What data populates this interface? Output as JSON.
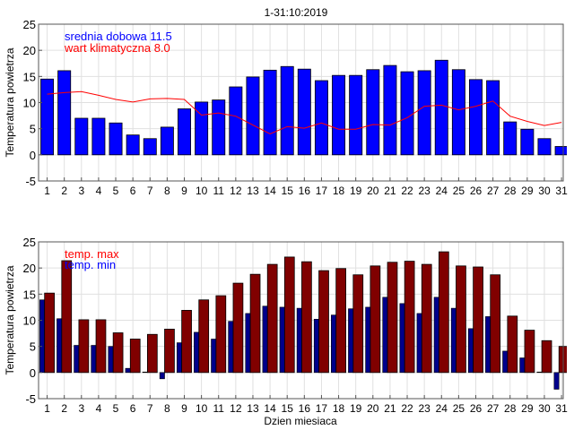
{
  "title": "1-31:10:2019",
  "chart_data": [
    {
      "type": "bar",
      "title": "1-31:10:2019",
      "ylabel": "Temperatura powietrza",
      "xlabel": "",
      "ylim": [
        -5,
        25
      ],
      "yticks": [
        -5,
        0,
        5,
        10,
        15,
        20,
        25
      ],
      "x": [
        1,
        2,
        3,
        4,
        5,
        6,
        7,
        8,
        9,
        10,
        11,
        12,
        13,
        14,
        15,
        16,
        17,
        18,
        19,
        20,
        21,
        22,
        23,
        24,
        25,
        26,
        27,
        28,
        29,
        30,
        31
      ],
      "grid": true,
      "legend": [
        "srednia dobowa 11.5",
        "wart klimatyczna 8.0"
      ],
      "legend_placement": "top-left",
      "series": [
        {
          "name": "srednia dobowa",
          "type": "bar",
          "color": "#0000ff",
          "values": [
            14.5,
            16.1,
            7.0,
            7.0,
            6.1,
            3.8,
            3.1,
            5.3,
            8.8,
            10.1,
            10.5,
            13.0,
            14.9,
            16.2,
            16.9,
            16.4,
            14.2,
            15.2,
            15.2,
            16.3,
            17.1,
            15.9,
            16.1,
            18.1,
            16.3,
            14.4,
            14.2,
            6.3,
            4.9,
            3.1,
            1.6
          ]
        },
        {
          "name": "wart klimatyczna",
          "type": "line",
          "color": "#ff0000",
          "values": [
            11.6,
            11.9,
            12.1,
            11.4,
            10.6,
            10.1,
            10.7,
            10.8,
            10.6,
            7.6,
            8.0,
            7.4,
            5.7,
            4.0,
            5.4,
            5.1,
            6.1,
            4.9,
            4.9,
            5.8,
            5.7,
            7.1,
            9.3,
            9.5,
            8.6,
            9.3,
            10.3,
            7.4,
            6.4,
            5.6,
            6.2
          ]
        }
      ]
    },
    {
      "type": "bar",
      "title": "",
      "ylabel": "Temperatura powietrza",
      "xlabel": "Dzien miesiaca",
      "ylim": [
        -5,
        25
      ],
      "yticks": [
        -5,
        0,
        5,
        10,
        15,
        20,
        25
      ],
      "x": [
        1,
        2,
        3,
        4,
        5,
        6,
        7,
        8,
        9,
        10,
        11,
        12,
        13,
        14,
        15,
        16,
        17,
        18,
        19,
        20,
        21,
        22,
        23,
        24,
        25,
        26,
        27,
        28,
        29,
        30,
        31
      ],
      "grid": true,
      "legend": [
        "temp. max",
        "temp. min"
      ],
      "legend_placement": "top-left",
      "legend_colors": [
        "#ff0000",
        "#0000ff"
      ],
      "series": [
        {
          "name": "temp. min",
          "type": "bar",
          "color": "#00008b",
          "values": [
            13.9,
            10.3,
            5.2,
            5.2,
            5.0,
            0.8,
            0.1,
            -1.2,
            5.7,
            7.7,
            6.4,
            9.8,
            11.3,
            12.7,
            12.5,
            12.3,
            10.2,
            11.0,
            12.2,
            12.5,
            14.4,
            13.2,
            11.3,
            14.4,
            12.3,
            8.4,
            10.7,
            4.1,
            2.8,
            0.1,
            -3.2
          ]
        },
        {
          "name": "temp. max",
          "type": "bar",
          "color": "#800000",
          "values": [
            15.2,
            21.4,
            10.1,
            10.1,
            7.6,
            6.4,
            7.3,
            8.3,
            11.9,
            13.9,
            14.7,
            17.1,
            18.8,
            20.7,
            22.1,
            21.2,
            19.5,
            19.9,
            18.7,
            20.4,
            21.1,
            21.3,
            20.7,
            23.1,
            20.4,
            20.2,
            18.7,
            10.8,
            8.1,
            6.1,
            5.0
          ]
        }
      ]
    }
  ]
}
